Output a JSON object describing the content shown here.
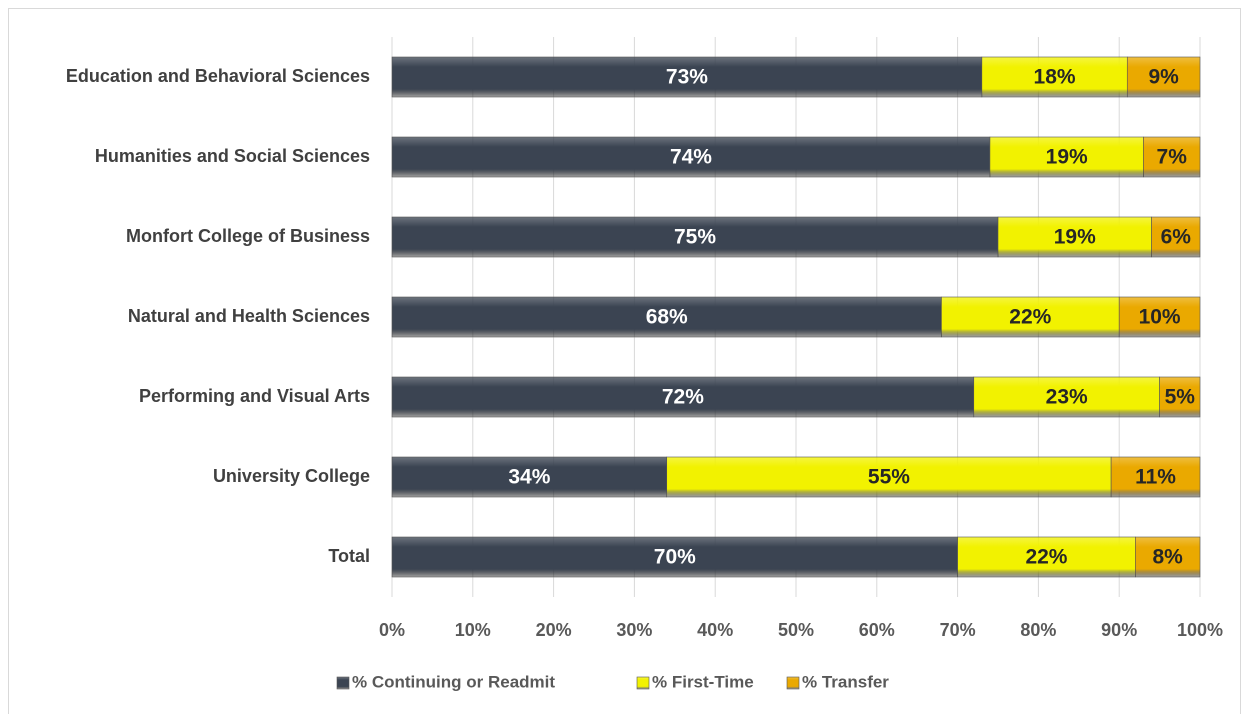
{
  "chart_data": {
    "type": "stacked_bar_horizontal",
    "categories": [
      "Education and Behavioral Sciences",
      "Humanities and Social Sciences",
      "Monfort College of Business",
      "Natural and Health Sciences",
      "Performing and Visual Arts",
      "University College",
      "Total"
    ],
    "series": [
      {
        "name": "% Continuing or Readmit",
        "color": "#3b4452",
        "label_color": "#ffffff",
        "values": [
          73,
          74,
          75,
          68,
          72,
          34,
          70
        ],
        "value_labels": [
          "73%",
          "74%",
          "75%",
          "68%",
          "72%",
          "34%",
          "70%"
        ]
      },
      {
        "name": "% First-Time",
        "color": "#f2f200",
        "label_color": "#262626",
        "values": [
          18,
          19,
          19,
          22,
          23,
          55,
          22
        ],
        "value_labels": [
          "18%",
          "19%",
          "19%",
          "22%",
          "23%",
          "55%",
          "22%"
        ]
      },
      {
        "name": "% Transfer",
        "color": "#eaa900",
        "label_color": "#262626",
        "values": [
          9,
          7,
          6,
          10,
          5,
          11,
          8
        ],
        "value_labels": [
          "9%",
          "7%",
          "6%",
          "10%",
          "5%",
          "11%",
          "8%"
        ]
      }
    ],
    "xlim": [
      0,
      100
    ],
    "xticks": [
      {
        "value": 0,
        "label": "0%"
      },
      {
        "value": 10,
        "label": "10%"
      },
      {
        "value": 20,
        "label": "20%"
      },
      {
        "value": 30,
        "label": "30%"
      },
      {
        "value": 40,
        "label": "40%"
      },
      {
        "value": 50,
        "label": "50%"
      },
      {
        "value": 60,
        "label": "60%"
      },
      {
        "value": 70,
        "label": "70%"
      },
      {
        "value": 80,
        "label": "80%"
      },
      {
        "value": 90,
        "label": "90%"
      },
      {
        "value": 100,
        "label": "100%"
      }
    ],
    "grid": true,
    "legend": "bottom"
  }
}
